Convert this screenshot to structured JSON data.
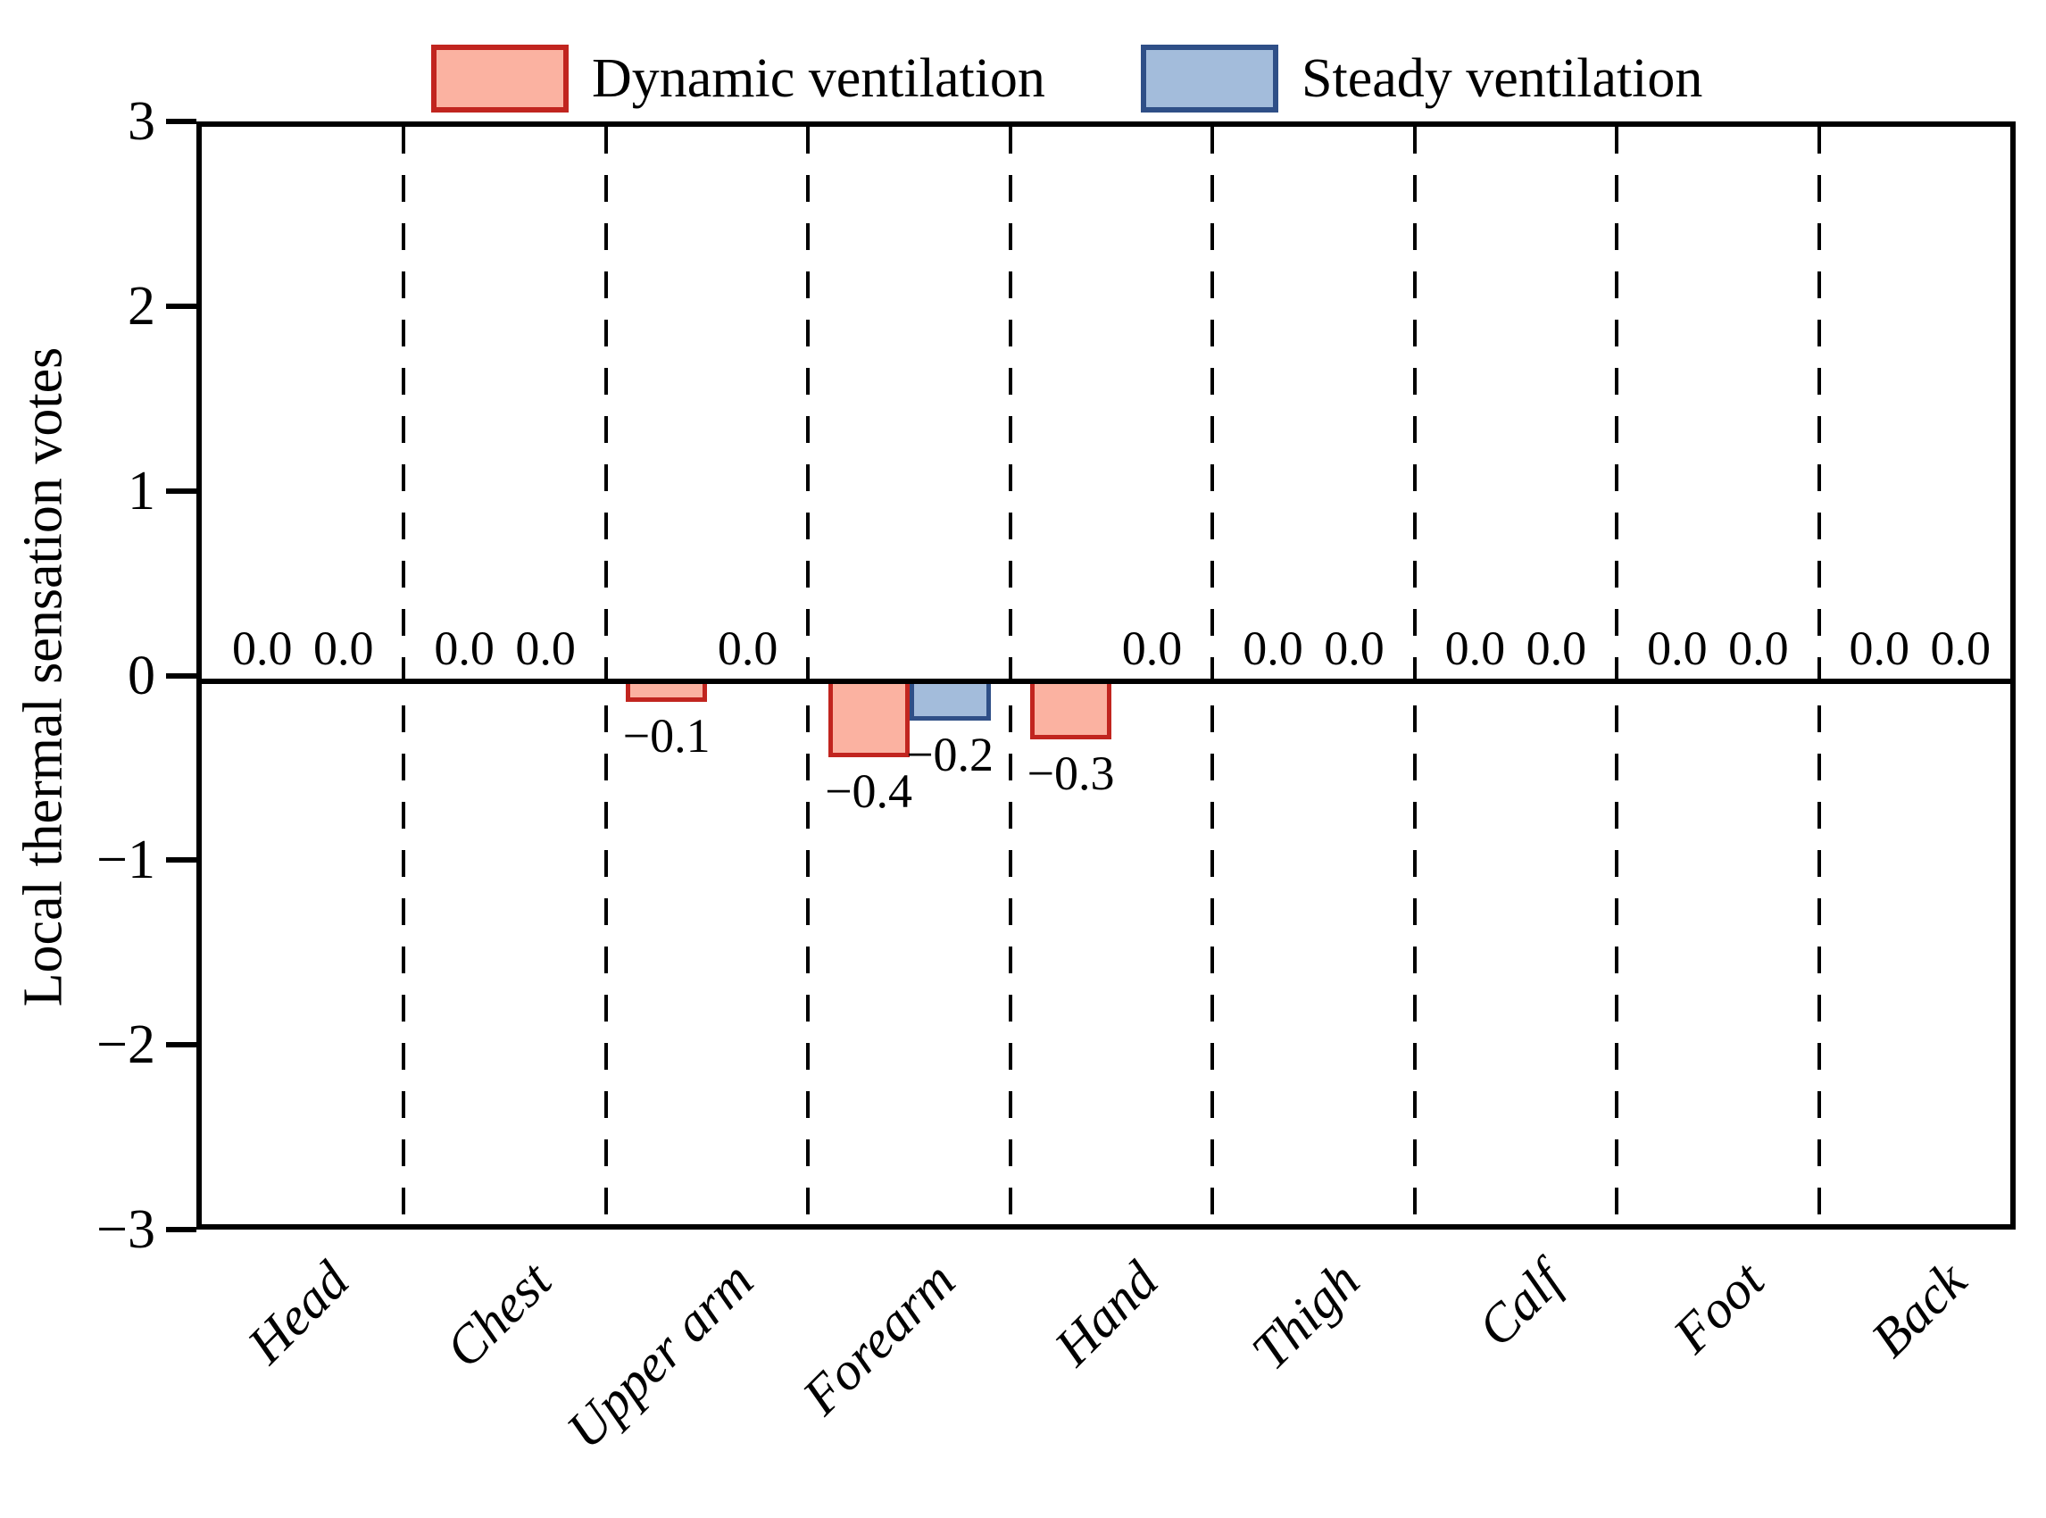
{
  "figure": {
    "background": "#ffffff",
    "text_color": "#000000"
  },
  "legend": {
    "position": "top",
    "items": [
      {
        "label": "Dynamic ventilation",
        "fill": "#fbb2a1",
        "edge": "#c1251f"
      },
      {
        "label": "Steady ventilation",
        "fill": "#a3bcdb",
        "edge": "#2f4f87"
      }
    ]
  },
  "chart_data": {
    "type": "bar",
    "title": "",
    "xlabel": "",
    "ylabel": "Local thermal sensation votes",
    "categories": [
      "Head",
      "Chest",
      "Upper arm",
      "Forearm",
      "Hand",
      "Thigh",
      "Calf",
      "Foot",
      "Back"
    ],
    "series": [
      {
        "name": "Dynamic ventilation",
        "fill": "#fbb2a1",
        "edge": "#c1251f",
        "values": [
          0.0,
          0.0,
          -0.1,
          -0.4,
          -0.3,
          0.0,
          0.0,
          0.0,
          0.0
        ],
        "value_labels": [
          "0.0",
          "0.0",
          "−0.1",
          "−0.4",
          "−0.3",
          "0.0",
          "0.0",
          "0.0",
          "0.0"
        ]
      },
      {
        "name": "Steady ventilation",
        "fill": "#a3bcdb",
        "edge": "#2f4f87",
        "values": [
          0.0,
          0.0,
          0.0,
          -0.2,
          0.0,
          0.0,
          0.0,
          0.0,
          0.0
        ],
        "value_labels": [
          "0.0",
          "0.0",
          "0.0",
          "−0.2",
          "0.0",
          "0.0",
          "0.0",
          "0.0",
          "0.0"
        ]
      }
    ],
    "ylim": [
      -3,
      3
    ],
    "yticks": [
      3,
      2,
      1,
      0,
      -1,
      -2,
      -3
    ],
    "ytick_labels": [
      "3",
      "2",
      "1",
      "0",
      "−1",
      "−2",
      "−3"
    ],
    "grid": "vertical dashed separators between categories",
    "zero_line": true,
    "legend_position": "top center"
  }
}
